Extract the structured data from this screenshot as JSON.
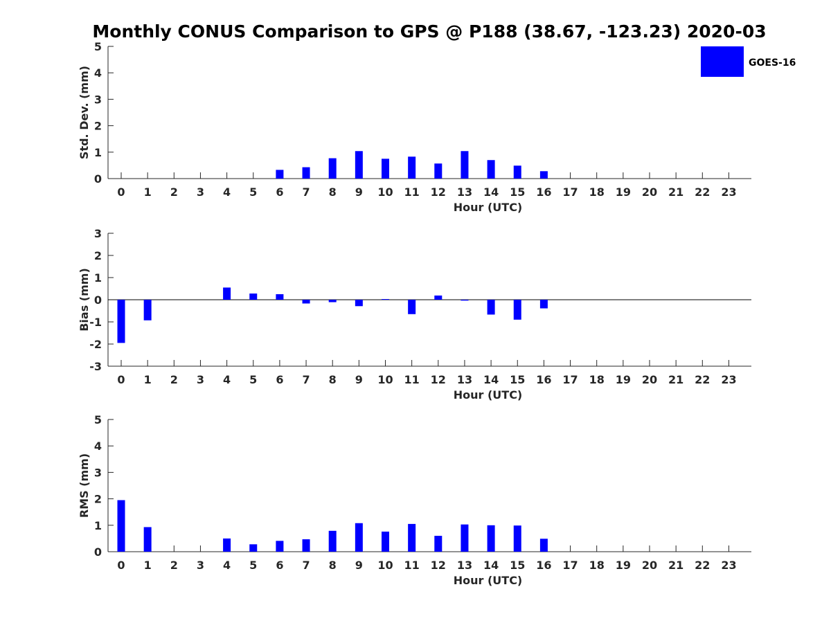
{
  "title": "Monthly CONUS Comparison to GPS @ P188 (38.67, -123.23) 2020-03",
  "legend": {
    "label": "GOES-16",
    "color": "#0000ff",
    "placement": "top-right"
  },
  "chart_data": [
    {
      "type": "bar",
      "name": "std-dev",
      "categories": [
        "0",
        "1",
        "2",
        "3",
        "4",
        "5",
        "6",
        "7",
        "8",
        "9",
        "10",
        "11",
        "12",
        "13",
        "14",
        "15",
        "16",
        "17",
        "18",
        "19",
        "20",
        "21",
        "22",
        "23"
      ],
      "series": [
        {
          "name": "GOES-16",
          "color": "#0000ff",
          "values": [
            null,
            null,
            null,
            null,
            null,
            null,
            0.33,
            0.43,
            0.77,
            1.04,
            0.75,
            0.83,
            0.57,
            1.04,
            0.7,
            0.49,
            0.28,
            null,
            null,
            null,
            null,
            null,
            null,
            null
          ]
        }
      ],
      "xlabel": "Hour (UTC)",
      "ylabel": "Std. Dev. (mm)",
      "ylim": [
        0,
        5
      ],
      "yticks": [
        "0",
        "1",
        "2",
        "3",
        "4",
        "5"
      ]
    },
    {
      "type": "bar",
      "name": "bias",
      "categories": [
        "0",
        "1",
        "2",
        "3",
        "4",
        "5",
        "6",
        "7",
        "8",
        "9",
        "10",
        "11",
        "12",
        "13",
        "14",
        "15",
        "16",
        "17",
        "18",
        "19",
        "20",
        "21",
        "22",
        "23"
      ],
      "series": [
        {
          "name": "GOES-16",
          "color": "#0000ff",
          "values": [
            -1.95,
            -0.93,
            null,
            null,
            0.55,
            0.28,
            0.25,
            -0.17,
            -0.11,
            -0.29,
            0.03,
            -0.65,
            0.19,
            -0.04,
            -0.67,
            -0.9,
            -0.39,
            null,
            null,
            null,
            null,
            null,
            null,
            null
          ]
        }
      ],
      "xlabel": "Hour (UTC)",
      "ylabel": "Bias (mm)",
      "ylim": [
        -3,
        3
      ],
      "yticks": [
        "-3",
        "-2",
        "-1",
        "0",
        "1",
        "2",
        "3"
      ],
      "zero_line": true
    },
    {
      "type": "bar",
      "name": "rms",
      "categories": [
        "0",
        "1",
        "2",
        "3",
        "4",
        "5",
        "6",
        "7",
        "8",
        "9",
        "10",
        "11",
        "12",
        "13",
        "14",
        "15",
        "16",
        "17",
        "18",
        "19",
        "20",
        "21",
        "22",
        "23"
      ],
      "series": [
        {
          "name": "GOES-16",
          "color": "#0000ff",
          "values": [
            1.95,
            0.93,
            null,
            null,
            0.5,
            0.28,
            0.41,
            0.47,
            0.79,
            1.08,
            0.76,
            1.05,
            0.6,
            1.03,
            1.0,
            0.99,
            0.49,
            null,
            null,
            null,
            null,
            null,
            null,
            null
          ]
        }
      ],
      "xlabel": "Hour (UTC)",
      "ylabel": "RMS (mm)",
      "ylim": [
        0,
        5
      ],
      "yticks": [
        "0",
        "1",
        "2",
        "3",
        "4",
        "5"
      ]
    }
  ]
}
